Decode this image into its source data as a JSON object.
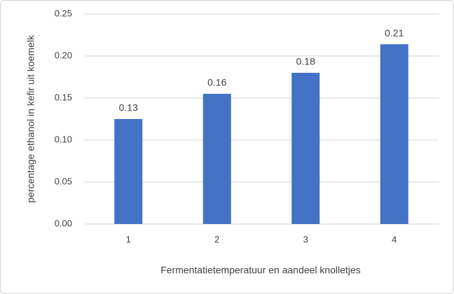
{
  "chart_data": {
    "type": "bar",
    "x_label": "Fermentatietemperatuur en aandeel knolletjes",
    "y_label": "percentage ethanol in kefir uit koemelk",
    "categories": [
      "1",
      "2",
      "3",
      "4"
    ],
    "values": [
      0.125,
      0.155,
      0.18,
      0.214
    ],
    "value_labels": [
      "0.13",
      "0.16",
      "0.18",
      "0.21"
    ],
    "color": "#4472c4",
    "ylim": [
      0,
      0.25
    ],
    "yticks": [
      {
        "value": 0,
        "label": "0.00"
      },
      {
        "value": 0.05,
        "label": "0.05"
      },
      {
        "value": 0.1,
        "label": "0.10"
      },
      {
        "value": 0.15,
        "label": "0.15"
      },
      {
        "value": 0.2,
        "label": "0.20"
      },
      {
        "value": 0.25,
        "label": "0.25"
      }
    ],
    "grid": true
  }
}
